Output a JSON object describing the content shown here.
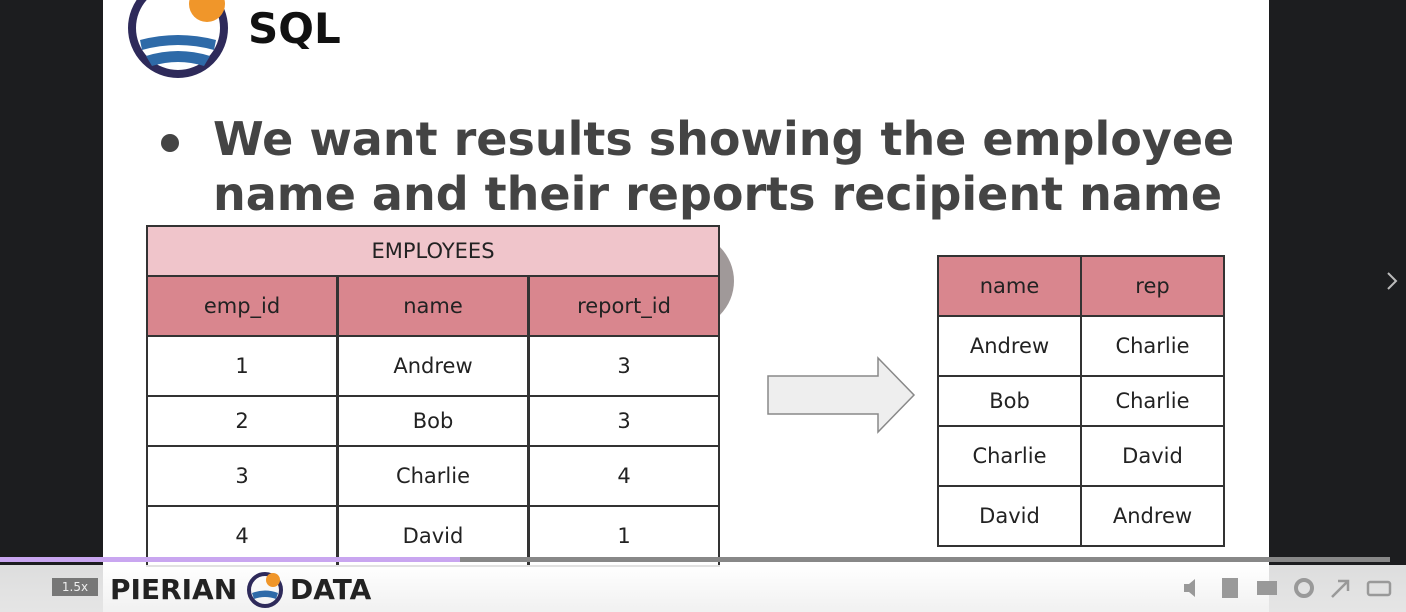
{
  "slide": {
    "logo_text": "SQL",
    "bullet_lines": [
      "We want results showing the employee",
      "name and their reports recipient name"
    ],
    "employees": {
      "title": "EMPLOYEES",
      "headers": [
        "emp_id",
        "name",
        "report_id"
      ],
      "rows": [
        [
          "1",
          "Andrew",
          "3"
        ],
        [
          "2",
          "Bob",
          "3"
        ],
        [
          "3",
          "Charlie",
          "4"
        ],
        [
          "4",
          "David",
          "1"
        ]
      ]
    },
    "result": {
      "headers": [
        "name",
        "rep"
      ],
      "rows": [
        [
          "Andrew",
          "Charlie"
        ],
        [
          "Bob",
          "Charlie"
        ],
        [
          "Charlie",
          "David"
        ],
        [
          "David",
          "Andrew"
        ]
      ]
    },
    "footer_left": "PIERIAN",
    "footer_right": "DATA"
  },
  "controls": {
    "speed": "1.5x"
  }
}
